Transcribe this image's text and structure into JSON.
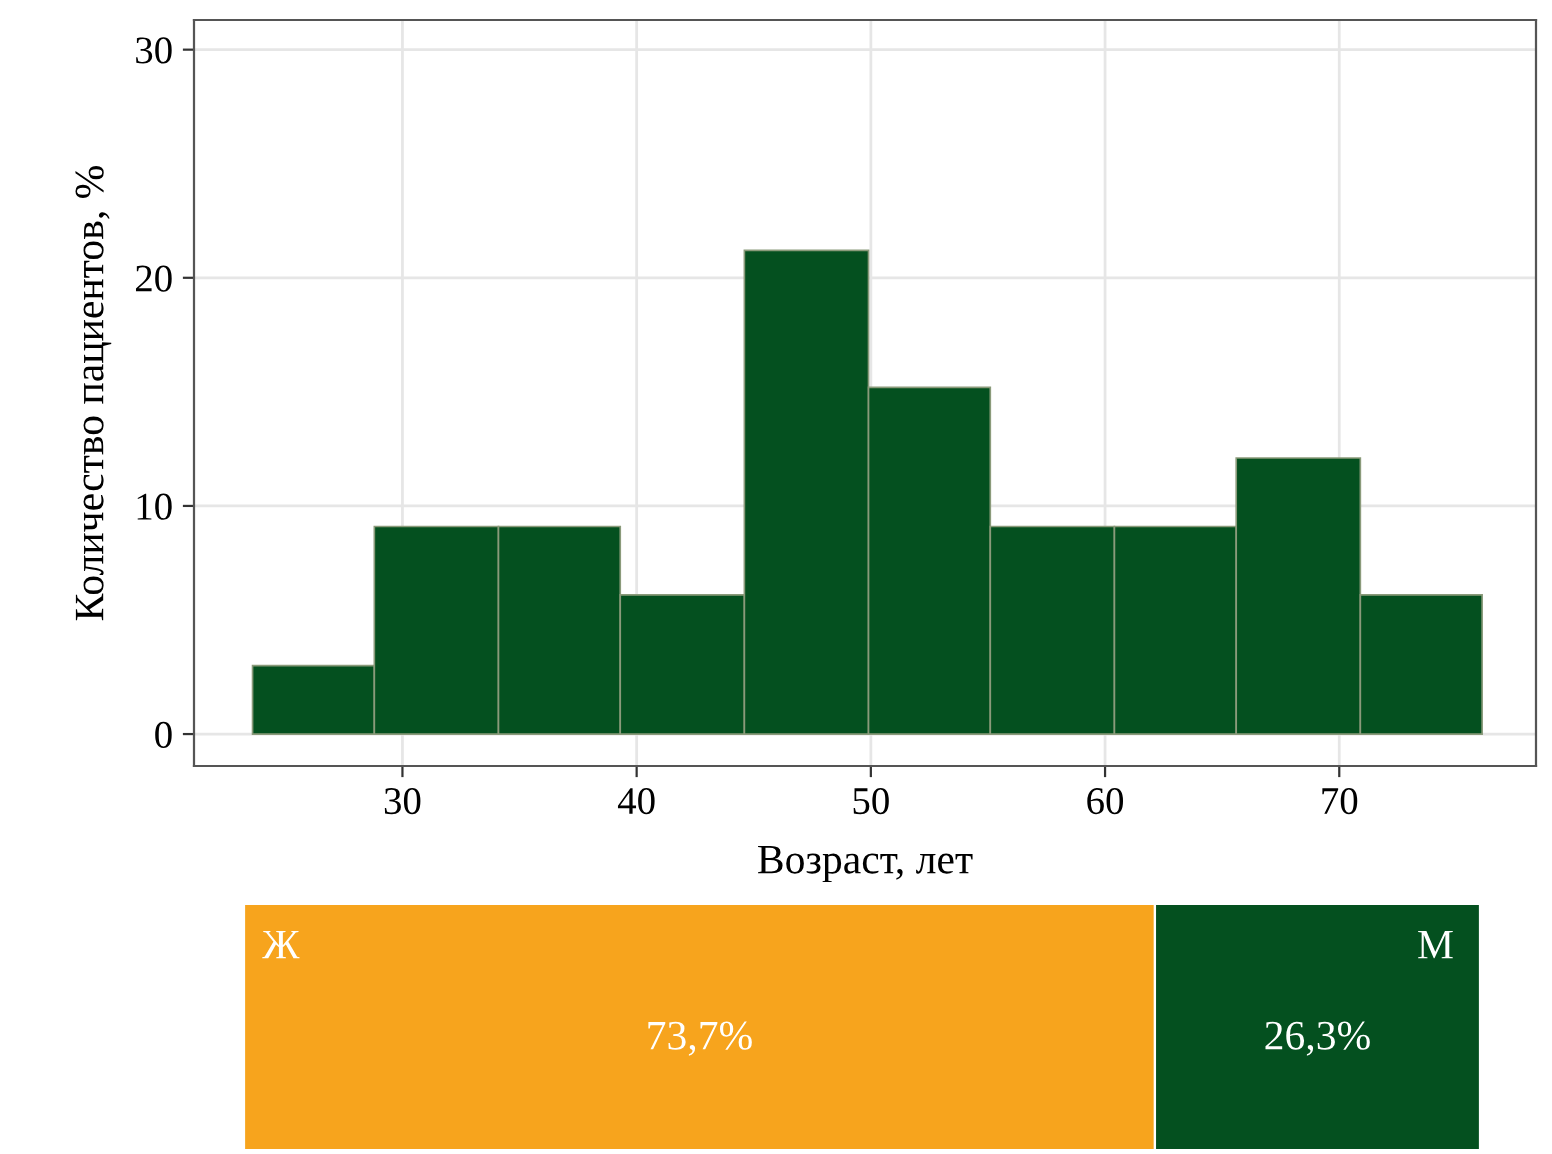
{
  "chart_data": [
    {
      "type": "histogram",
      "xlabel": "Возраст, лет",
      "ylabel": "Количество пациентов, %",
      "bins": [
        23.6,
        28.8,
        34.1,
        39.3,
        44.6,
        49.9,
        55.1,
        60.4,
        65.6,
        70.9,
        76.1
      ],
      "values": [
        3.0,
        9.1,
        9.1,
        6.1,
        21.2,
        15.2,
        9.1,
        9.1,
        12.1,
        6.1
      ],
      "color": "#04501f",
      "xlim": [
        21.1,
        78.4
      ],
      "xticks": [
        30,
        40,
        50,
        60,
        70
      ],
      "ylim": [
        -1.4,
        31.3
      ],
      "yticks": [
        0,
        10,
        20,
        30
      ],
      "grid": true
    },
    {
      "type": "bar",
      "orientation": "horizontal",
      "stacked": true,
      "categories": [
        null
      ],
      "series": [
        {
          "name": "Ж",
          "color": "#f7a41d",
          "values": [
            73.7
          ],
          "value_labels": [
            "73,7%"
          ]
        },
        {
          "name": "М",
          "color": "#04501f",
          "values": [
            26.3
          ],
          "value_labels": [
            "26,3%"
          ]
        }
      ]
    }
  ]
}
